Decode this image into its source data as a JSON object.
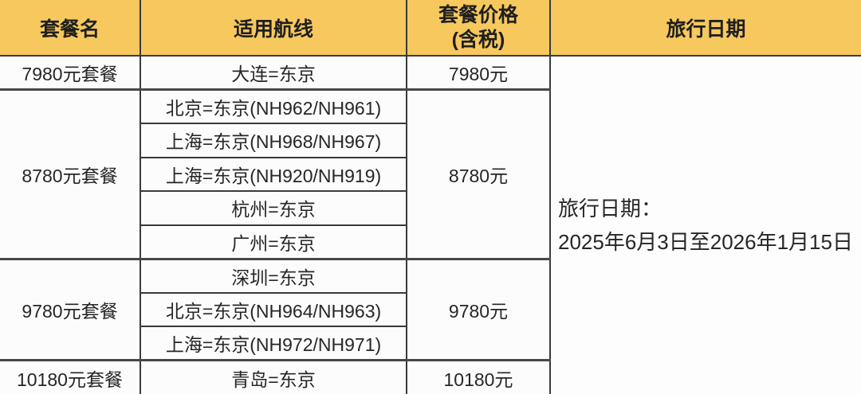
{
  "theme": {
    "header_bg": "#f6c85e",
    "border_color": "#3a3a3a",
    "text_color": "#262626",
    "body_bg": "#fdfdfd"
  },
  "table": {
    "headers": {
      "package": "套餐名",
      "routes": "适用航线",
      "price_line1": "套餐价格",
      "price_line2": "(含税)",
      "dates": "旅行日期"
    },
    "groups": [
      {
        "package": "7980元套餐",
        "price": "7980元",
        "routes": [
          "大连=东京"
        ]
      },
      {
        "package": "8780元套餐",
        "price": "8780元",
        "routes": [
          "北京=东京(NH962/NH961)",
          "上海=东京(NH968/NH967)",
          "上海=东京(NH920/NH919)",
          "杭州=东京",
          "广州=东京"
        ]
      },
      {
        "package": "9780元套餐",
        "price": "9780元",
        "routes": [
          "深圳=东京",
          "北京=东京(NH964/NH963)",
          "上海=东京(NH972/NH971)"
        ]
      },
      {
        "package": "10180元套餐",
        "price": "10180元",
        "routes": [
          "青岛=东京"
        ]
      }
    ],
    "travel_dates": {
      "label": "旅行日期：",
      "range": "2025年6月3日至2026年1月15日"
    }
  }
}
